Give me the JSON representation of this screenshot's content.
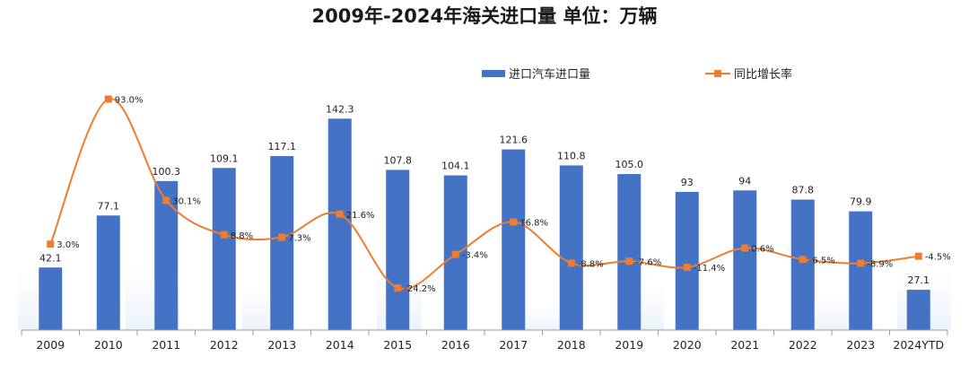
{
  "chart_data": {
    "type": "bar",
    "title": "2009年-2024年海关进口量 单位：万辆",
    "categories": [
      "2009",
      "2010",
      "2011",
      "2012",
      "2013",
      "2014",
      "2015",
      "2016",
      "2017",
      "2018",
      "2019",
      "2020",
      "2021",
      "2022",
      "2023",
      "2024YTD"
    ],
    "series": [
      {
        "name": "进口汽车进口量",
        "type": "bar",
        "color": "#4472C4",
        "values": [
          42.1,
          77.1,
          100.3,
          109.1,
          117.1,
          142.3,
          107.8,
          104.1,
          121.6,
          110.8,
          105.0,
          93,
          94,
          87.8,
          79.9,
          27.1
        ],
        "labels": [
          "42.1",
          "77.1",
          "100.3",
          "109.1",
          "117.1",
          "142.3",
          "107.8",
          "104.1",
          "121.6",
          "110.8",
          "105.0",
          "93",
          "94",
          "87.8",
          "79.9",
          "27.1"
        ]
      },
      {
        "name": "同比增长率",
        "type": "line",
        "color": "#ED7D31",
        "values": [
          3.0,
          93.0,
          30.1,
          8.8,
          7.3,
          21.6,
          -24.2,
          -3.4,
          16.8,
          -8.8,
          -7.6,
          -11.4,
          0.6,
          -6.5,
          -8.9,
          -4.5
        ],
        "labels": [
          "3.0%",
          "93.0%",
          "30.1%",
          "8.8%",
          "7.3%",
          "21.6%",
          "-24.2%",
          "-3.4%",
          "16.8%",
          "-8.8%",
          "-7.6%",
          "-11.4%",
          "0.6%",
          "-6.5%",
          "-8.9%",
          "-4.5%"
        ]
      }
    ],
    "ylim_bar": [
      0,
      160
    ],
    "ylim_line": [
      -40,
      100
    ],
    "legend": "top-right",
    "grid": false
  }
}
